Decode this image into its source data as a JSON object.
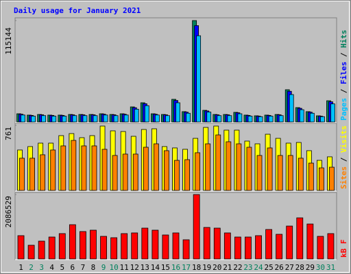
{
  "chart_data": [
    {
      "type": "bar",
      "title": "Daily usage for January 2021",
      "legend_separator": " / ",
      "ylim": [
        0,
        115144
      ],
      "yticks": [
        115144
      ],
      "series": [
        {
          "name": "Hits",
          "color": "#00805c",
          "values": [
            9300,
            7800,
            8500,
            7800,
            7800,
            8500,
            8500,
            8500,
            9300,
            8500,
            9300,
            17100,
            21800,
            9300,
            8500,
            25700,
            11700,
            115144,
            13200,
            8500,
            8500,
            10900,
            7800,
            7000,
            7800,
            8500,
            36600,
            16300,
            11700,
            7000,
            24100
          ]
        },
        {
          "name": "Files",
          "color": "#0000ff",
          "values": [
            8800,
            7400,
            8100,
            7400,
            7400,
            8100,
            8100,
            8100,
            8800,
            8100,
            8800,
            16200,
            20700,
            8800,
            8100,
            24400,
            11100,
            109400,
            12500,
            8100,
            8100,
            10400,
            7400,
            6600,
            7400,
            8100,
            34800,
            15500,
            11100,
            6600,
            22900
          ]
        },
        {
          "name": "Pages",
          "color": "#00c0ff",
          "values": [
            7900,
            6600,
            7200,
            6600,
            6600,
            7200,
            7200,
            7200,
            7900,
            7200,
            7900,
            14500,
            18500,
            7900,
            7200,
            21800,
            9900,
            97900,
            11200,
            7200,
            7200,
            9300,
            6600,
            6000,
            6600,
            7200,
            31100,
            13900,
            9900,
            6000,
            20500
          ]
        }
      ]
    },
    {
      "type": "bar",
      "legend_separator": " / ",
      "ylim": [
        0,
        761
      ],
      "yticks": [
        761
      ],
      "series": [
        {
          "name": "Visits",
          "color": "#ffff00",
          "values": [
            473,
            513,
            553,
            553,
            641,
            665,
            617,
            641,
            753,
            697,
            689,
            633,
            713,
            721,
            513,
            497,
            481,
            609,
            737,
            753,
            705,
            705,
            577,
            545,
            657,
            609,
            553,
            561,
            465,
            352,
            393
          ]
        },
        {
          "name": "Sites",
          "color": "#ff8000",
          "values": [
            377,
            377,
            417,
            473,
            521,
            585,
            521,
            521,
            481,
            409,
            425,
            425,
            505,
            545,
            465,
            352,
            360,
            441,
            545,
            649,
            569,
            545,
            505,
            409,
            497,
            409,
            409,
            377,
            320,
            264,
            272
          ]
        }
      ]
    },
    {
      "type": "bar",
      "ylim": [
        0,
        2086529
      ],
      "yticks": [
        2086529
      ],
      "categories": [
        "1",
        "2",
        "3",
        "4",
        "5",
        "6",
        "7",
        "8",
        "9",
        "10",
        "11",
        "12",
        "13",
        "14",
        "15",
        "16",
        "17",
        "18",
        "19",
        "20",
        "21",
        "22",
        "23",
        "24",
        "25",
        "26",
        "27",
        "28",
        "29",
        "30",
        "31"
      ],
      "category_colors": [
        "#000000",
        "#00805c",
        "#00805c",
        "#000000",
        "#000000",
        "#000000",
        "#000000",
        "#000000",
        "#00805c",
        "#00805c",
        "#000000",
        "#000000",
        "#000000",
        "#000000",
        "#000000",
        "#00805c",
        "#00805c",
        "#000000",
        "#000000",
        "#000000",
        "#000000",
        "#000000",
        "#00805c",
        "#00805c",
        "#000000",
        "#000000",
        "#000000",
        "#000000",
        "#000000",
        "#00805c",
        "#00805c"
      ],
      "series": [
        {
          "name": "kB F",
          "color": "#ff0000",
          "values": [
            754698,
            443940,
            577122,
            710304,
            821289,
            1109850,
            887880,
            932274,
            732501,
            688107,
            821289,
            843486,
            998865,
            932274,
            776895,
            843486,
            621516,
            2086529,
            1021062,
            998865,
            843486,
            710304,
            710304,
            754698,
            954471,
            799092,
            1065456,
            1331820,
            1132047,
            732501,
            821289
          ]
        }
      ]
    }
  ]
}
